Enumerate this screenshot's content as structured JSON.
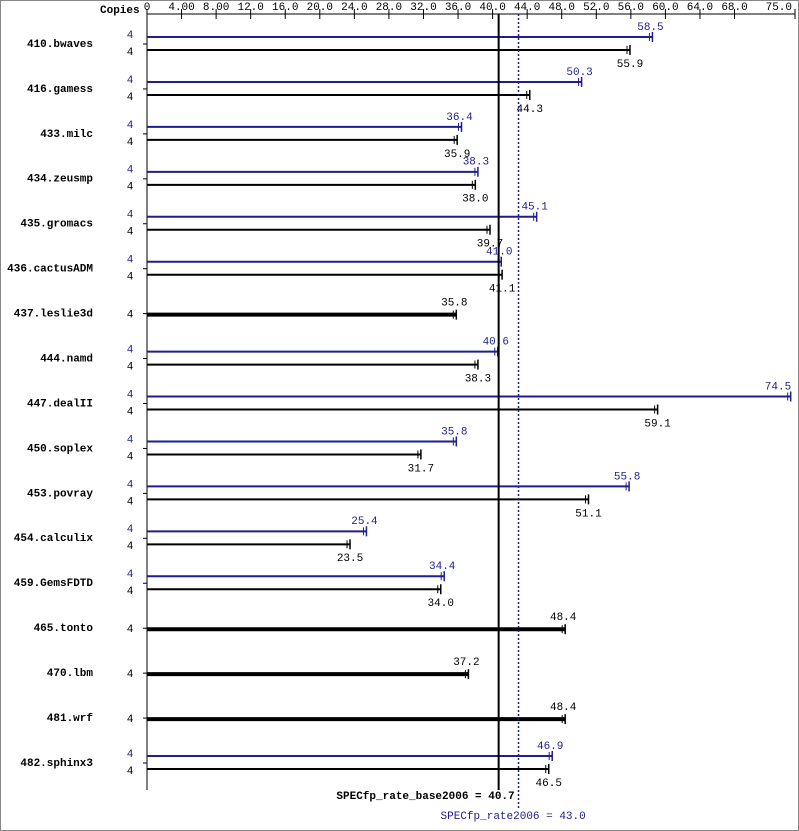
{
  "chart_data": {
    "type": "bar",
    "orientation": "horizontal",
    "copies_label": "Copies",
    "categories": [
      "410.bwaves",
      "416.gamess",
      "433.milc",
      "434.zeusmp",
      "435.gromacs",
      "436.cactusADM",
      "437.leslie3d",
      "444.namd",
      "447.dealII",
      "450.soplex",
      "453.povray",
      "454.calculix",
      "459.GemsFDTD",
      "465.tonto",
      "470.lbm",
      "481.wrf",
      "482.sphinx3"
    ],
    "series": [
      {
        "color": "#000000",
        "values": [
          55.9,
          44.3,
          35.9,
          38.0,
          39.7,
          41.1,
          35.8,
          38.3,
          59.1,
          31.7,
          51.1,
          23.5,
          34.0,
          48.4,
          37.2,
          48.4,
          46.5
        ],
        "value_labels": [
          "55.9",
          "44.3",
          "35.9",
          "38.0",
          "39.7",
          "41.1",
          "35.8",
          "38.3",
          "59.1",
          "31.7",
          "51.1",
          "23.5",
          "34.0",
          "48.4",
          "37.2",
          "48.4",
          "46.5"
        ],
        "copies": [
          4,
          4,
          4,
          4,
          4,
          4,
          4,
          4,
          4,
          4,
          4,
          4,
          4,
          4,
          4,
          4,
          4
        ]
      },
      {
        "color": "#1e1e8c",
        "values": [
          58.5,
          50.3,
          36.4,
          38.3,
          45.1,
          41.0,
          null,
          40.6,
          74.5,
          35.8,
          55.8,
          25.4,
          34.4,
          null,
          null,
          null,
          46.9
        ],
        "value_labels": [
          "58.5",
          "50.3",
          "36.4",
          "38.3",
          "45.1",
          "41.0",
          null,
          "40.6",
          "74.5",
          "35.8",
          "55.8",
          "25.4",
          "34.4",
          null,
          null,
          null,
          "46.9"
        ],
        "copies": [
          4,
          4,
          4,
          4,
          4,
          4,
          null,
          4,
          4,
          4,
          4,
          4,
          4,
          null,
          null,
          null,
          4
        ]
      }
    ],
    "xlim": [
      0,
      75
    ],
    "xticks": [
      0,
      {
        "value": 4,
        "label": "4.00"
      },
      {
        "value": 8,
        "label": "8.00"
      },
      {
        "value": 12,
        "label": "12.0"
      },
      {
        "value": 16,
        "label": "16.0"
      },
      {
        "value": 20,
        "label": "20.0"
      },
      {
        "value": 24,
        "label": "24.0"
      },
      {
        "value": 28,
        "label": "28.0"
      },
      {
        "value": 32,
        "label": "32.0"
      },
      {
        "value": 36,
        "label": "36.0"
      },
      {
        "value": 40,
        "label": "40.0"
      },
      {
        "value": 44,
        "label": "44.0"
      },
      {
        "value": 48,
        "label": "48.0"
      },
      {
        "value": 52,
        "label": "52.0"
      },
      {
        "value": 56,
        "label": "56.0"
      },
      {
        "value": 60,
        "label": "60.0"
      },
      {
        "value": 64,
        "label": "64.0"
      },
      {
        "value": 68,
        "label": "68.0"
      },
      {
        "value": 75,
        "label": "75.0"
      }
    ],
    "base_line": {
      "value": 40.7,
      "label": "SPECfp_rate_base2006 = 40.7",
      "color": "#000000"
    },
    "peak_line": {
      "value": 43.0,
      "label": "SPECfp_rate2006 = 43.0",
      "color": "#1e1e8c"
    }
  }
}
